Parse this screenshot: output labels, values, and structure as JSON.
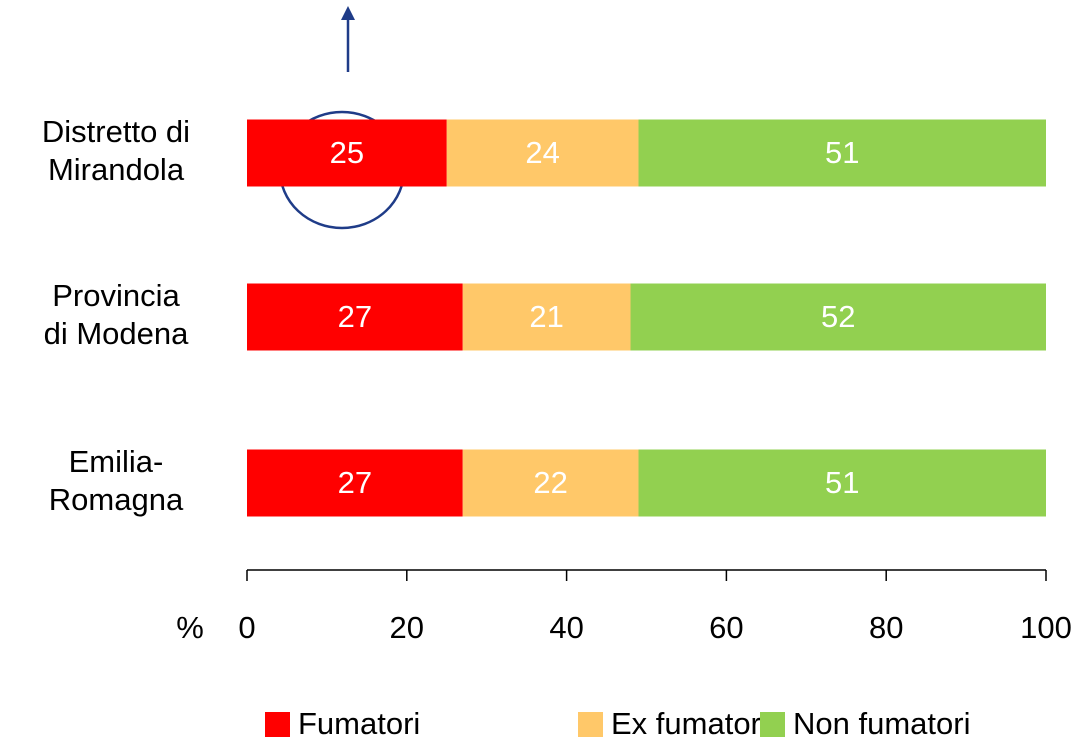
{
  "chart_data": {
    "type": "stacked_bar_horizontal",
    "categories": [
      "Distretto di\nMirandola",
      "Provincia\ndi Modena",
      "Emilia-\nRomagna"
    ],
    "series": [
      {
        "name": "Fumatori",
        "color": "#ff0000",
        "values": [
          25,
          27,
          27
        ]
      },
      {
        "name": "Ex fumatori",
        "color": "#ffc869",
        "values": [
          24,
          21,
          22
        ]
      },
      {
        "name": "Non fumatori",
        "color": "#92d050",
        "values": [
          51,
          52,
          51
        ]
      }
    ],
    "xlabel": "%",
    "xlim": [
      0,
      100
    ],
    "xticks": [
      0,
      20,
      40,
      60,
      80,
      100
    ],
    "legend": "bottom"
  }
}
